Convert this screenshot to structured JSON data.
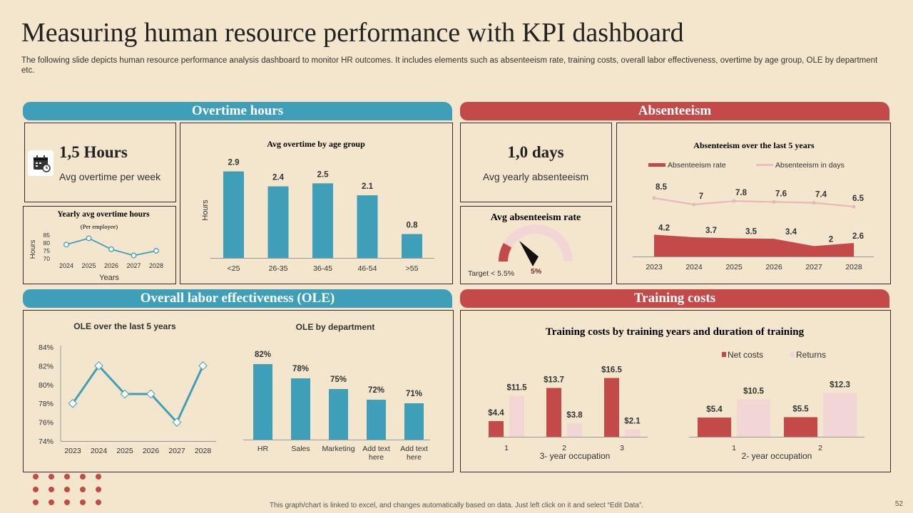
{
  "title": "Measuring human resource performance with KPI dashboard",
  "subtitle": "The following slide depicts human resource performance analysis dashboard to monitor HR outcomes. It includes elements such as absenteeism rate, training costs, overall labor effectiveness, overtime by age group, OLE by department etc.",
  "sections": {
    "overtime": "Overtime hours",
    "absenteeism": "Absenteeism",
    "ole": "Overall labor effectiveness (OLE)",
    "training": "Training costs"
  },
  "kpi": {
    "overtime_value": "1,5 Hours",
    "overtime_label": "Avg overtime per week",
    "absent_value": "1,0 days",
    "absent_label": "Avg yearly absenteeism",
    "rate_title": "Avg absenteeism rate",
    "rate_target": "Target < 5.5%",
    "rate_value_label": "5%",
    "rate_value": 5,
    "rate_max": 30
  },
  "icons": {
    "calendar": "calendar-clock-icon"
  },
  "colors": {
    "teal": "#3f9fb8",
    "red": "#c44a4a",
    "pink": "#f2d6d6",
    "lightpink": "#e8b8b8"
  },
  "footer": "This graph/chart is linked to excel, and changes automatically based on data. Just left click on it and select “Edit Data”.",
  "page_number": "52",
  "chart_data": [
    {
      "id": "yearly_overtime",
      "type": "line",
      "title": "Yearly avg overtime hours",
      "subtitle": "(Per employee)",
      "xlabel": "Years",
      "ylabel": "Hours",
      "x": [
        "2024",
        "2025",
        "2026",
        "2027",
        "2028"
      ],
      "values": [
        79,
        83,
        76,
        72,
        75
      ],
      "yticks": [
        "85",
        "80",
        "75",
        "70"
      ],
      "ylim": [
        70,
        85
      ]
    },
    {
      "id": "overtime_age",
      "type": "bar",
      "title": "Avg overtime by age group",
      "ylabel": "Hours",
      "categories": [
        "<25",
        "26-35",
        "36-45",
        "46-54",
        ">55"
      ],
      "values": [
        2.9,
        2.4,
        2.5,
        2.1,
        0.8
      ],
      "labels": [
        "2.9",
        "2.4",
        "2.5",
        "2.1",
        "0.8"
      ],
      "ylim": [
        0,
        3.2
      ]
    },
    {
      "id": "absenteeism_5y",
      "type": "area",
      "title": "Absenteeism over the last 5 years",
      "x": [
        "2023",
        "2024",
        "2025",
        "2026",
        "2027",
        "2028"
      ],
      "series": [
        {
          "name": "Absenteeism rate",
          "values": [
            4.2,
            3.7,
            3.5,
            3.4,
            2,
            2.6
          ],
          "labels": [
            "4.2",
            "3.7",
            "3.5",
            "3.4",
            "2",
            "2.6"
          ]
        },
        {
          "name": "Absenteeism in days",
          "values": [
            8.5,
            7,
            7.8,
            7.6,
            7.4,
            6.5
          ],
          "labels": [
            "8.5",
            "7",
            "7.8",
            "7.6",
            "7.4",
            "6.5"
          ]
        }
      ]
    },
    {
      "id": "ole_5y",
      "type": "line",
      "title": "OLE over the last 5 years",
      "x": [
        "2023",
        "2024",
        "2025",
        "2026",
        "2027",
        "2028"
      ],
      "values": [
        78,
        82,
        79,
        79,
        76,
        82
      ],
      "yticks": [
        "84%",
        "82%",
        "80%",
        "78%",
        "76%",
        "74%"
      ],
      "ylim": [
        74,
        84
      ]
    },
    {
      "id": "ole_dept",
      "type": "bar",
      "title": "OLE by department",
      "categories": [
        "HR",
        "Sales",
        "Marketing",
        "Add text here",
        "Add text here"
      ],
      "values": [
        82,
        78,
        75,
        72,
        71
      ],
      "labels": [
        "82%",
        "78%",
        "75%",
        "72%",
        "71%"
      ],
      "ylim": [
        60,
        84
      ]
    },
    {
      "id": "training_costs",
      "type": "bar",
      "title": "Training costs by training years and duration of training",
      "legend": [
        "Net costs",
        "Returns"
      ],
      "groups": [
        {
          "xlabel": "3- year occupation",
          "categories": [
            "1",
            "2",
            "3"
          ],
          "series": [
            {
              "name": "Net costs",
              "values": [
                4.4,
                13.7,
                16.5
              ],
              "labels": [
                "$4.4",
                "$13.7",
                "$16.5"
              ]
            },
            {
              "name": "Returns",
              "values": [
                11.5,
                3.8,
                2.1
              ],
              "labels": [
                "$11.5",
                "$3.8",
                "$2.1"
              ]
            }
          ],
          "ylim": [
            0,
            18
          ]
        },
        {
          "xlabel": "2- year occupation",
          "categories": [
            "1",
            "2"
          ],
          "series": [
            {
              "name": "Net costs",
              "values": [
                5.4,
                5.5
              ],
              "labels": [
                "$5.4",
                "$5.5"
              ]
            },
            {
              "name": "Returns",
              "values": [
                10.5,
                12.3
              ],
              "labels": [
                "$10.5",
                "$12.3"
              ]
            }
          ],
          "ylim": [
            0,
            14
          ]
        }
      ]
    }
  ]
}
